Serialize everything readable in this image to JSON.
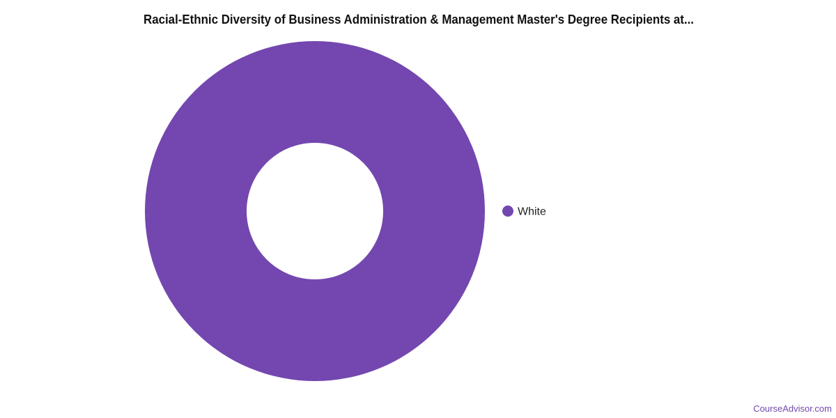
{
  "chart_data": {
    "type": "pie",
    "variant": "donut",
    "title": "Racial-Ethnic Diversity of Business Administration & Management Master's Degree Recipients at...",
    "categories": [
      "White"
    ],
    "values": [
      100
    ],
    "colors": [
      "#7347af"
    ],
    "legend": {
      "placement": "right",
      "entries": [
        "White"
      ]
    }
  },
  "watermark": "CourseAdvisor.com"
}
